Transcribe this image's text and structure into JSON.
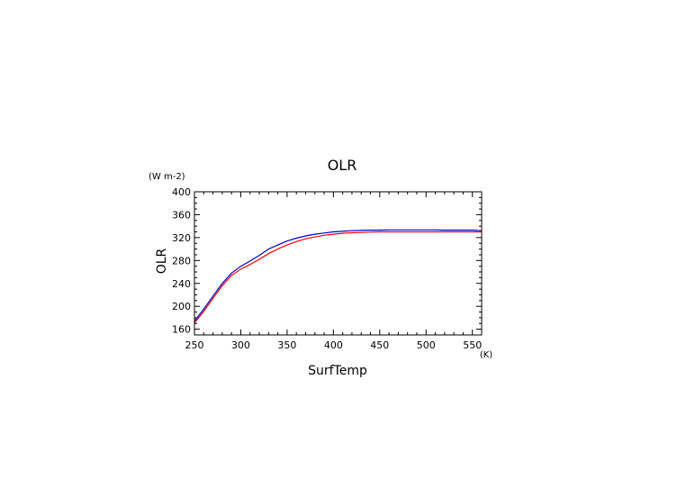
{
  "chart_data": {
    "type": "line",
    "title": "OLR",
    "xlabel": "SurfTemp",
    "ylabel": "OLR",
    "x_unit": "(K)",
    "y_unit": "(W m-2)",
    "xlim": [
      250,
      560
    ],
    "ylim": [
      150,
      400
    ],
    "xticks": [
      250,
      300,
      350,
      400,
      450,
      500,
      550
    ],
    "yticks": [
      160,
      200,
      240,
      280,
      320,
      360,
      400
    ],
    "grid": false,
    "x": [
      250,
      260,
      270,
      280,
      290,
      300,
      310,
      320,
      330,
      340,
      350,
      360,
      370,
      380,
      390,
      400,
      410,
      420,
      430,
      440,
      450,
      460,
      470,
      480,
      490,
      500,
      510,
      520,
      530,
      540,
      550,
      560
    ],
    "series": [
      {
        "color": "#0000cc",
        "values": [
          174,
          195,
          218,
          240,
          258,
          270,
          279,
          289,
          300,
          307,
          314,
          319,
          323,
          326,
          328,
          330,
          331,
          332,
          332.5,
          333,
          333,
          333.5,
          333.5,
          333.5,
          333.5,
          333.5,
          333.5,
          333,
          333,
          333,
          333,
          332
        ]
      },
      {
        "color": "#ff0000",
        "values": [
          171,
          191,
          214,
          236,
          254,
          265,
          273,
          282,
          292,
          300,
          307,
          313,
          318,
          321,
          324,
          326,
          327.5,
          328.5,
          329,
          329.5,
          330,
          330,
          330,
          330,
          330,
          330,
          330,
          330,
          330,
          330,
          330,
          330
        ]
      }
    ]
  }
}
